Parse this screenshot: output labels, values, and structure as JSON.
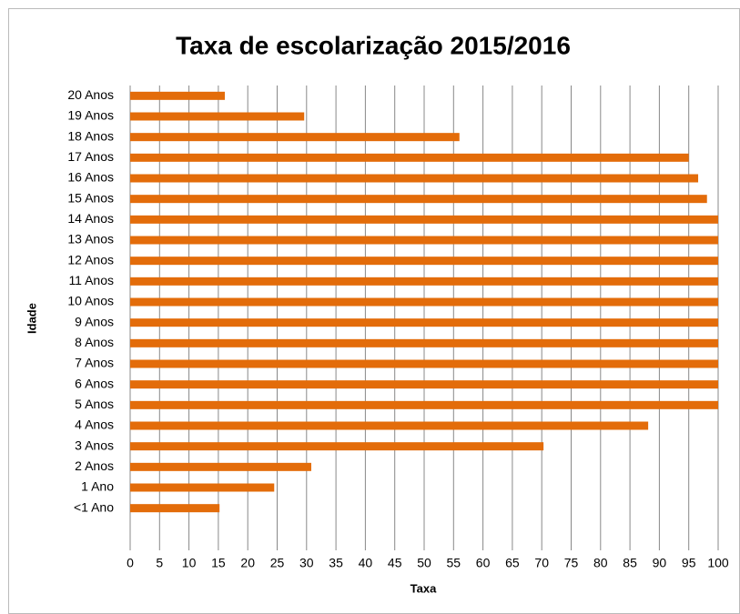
{
  "chart_data": {
    "type": "barh",
    "title": "Taxa de escolarização 2015/2016",
    "x_label": "Taxa",
    "y_label": "Idade",
    "categories": [
      "<1 Ano",
      "1 Ano",
      "2 Anos",
      "3 Anos",
      "4 Anos",
      "5 Anos",
      "6 Anos",
      "7 Anos",
      "8 Anos",
      "9 Anos",
      "10 Anos",
      "11 Anos",
      "12 Anos",
      "13 Anos",
      "14 Anos",
      "15 Anos",
      "16 Anos",
      "17 Anos",
      "18 Anos",
      "19 Anos",
      "20 Anos"
    ],
    "values": [
      15.2,
      24.5,
      30.8,
      70.3,
      88.1,
      100,
      100,
      100,
      100,
      100,
      100,
      100,
      100,
      100,
      100,
      98.1,
      96.6,
      95.0,
      56.0,
      29.6,
      16.1
    ],
    "color": "#e36c0a",
    "xlim": [
      0,
      100
    ],
    "xticks": [
      0,
      5,
      10,
      15,
      20,
      25,
      30,
      35,
      40,
      45,
      50,
      55,
      60,
      65,
      70,
      75,
      80,
      85,
      90,
      95,
      100
    ],
    "grid": true
  }
}
